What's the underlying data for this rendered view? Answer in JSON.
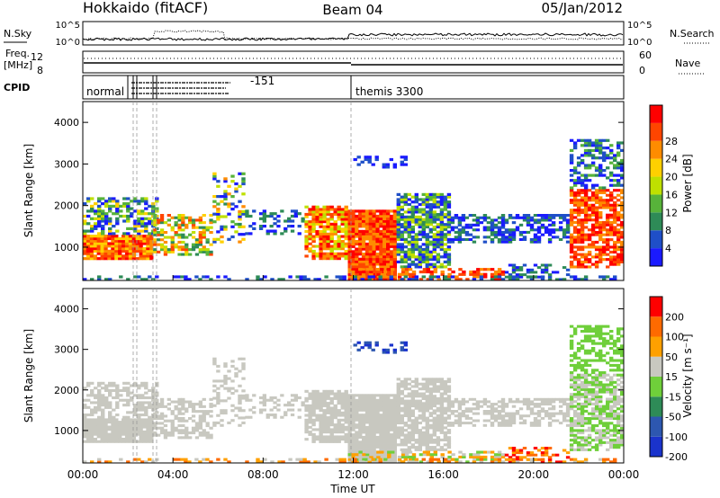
{
  "header": {
    "station": "Hokkaido (fitACF)",
    "beam": "Beam 04",
    "date": "05/Jan/2012"
  },
  "top_panels": {
    "nsky_label": "N.Sky",
    "nsky_ticks": [
      "10^5",
      "10^0"
    ],
    "nsearch_label": "N.Search",
    "nsearch_ticks": [
      "10^5",
      "10^0"
    ],
    "freq_label_line1": "Freq.",
    "freq_label_line2": "[MHz]",
    "freq_ticks": [
      "12",
      "8"
    ],
    "nave_label": "Nave",
    "nave_ticks": [
      "60",
      "0"
    ],
    "cpid_label": "CPID"
  },
  "cpid_annotations": [
    "normal",
    "themis 3300",
    "-151"
  ],
  "colors": {
    "power": [
      "#1a1aff",
      "#1f4fc8",
      "#2e8b57",
      "#57b33a",
      "#bfe000",
      "#ffd000",
      "#ff8c00",
      "#ff4500",
      "#ff0000"
    ],
    "velocity": [
      "#1a33cc",
      "#2d57b0",
      "#2e8b57",
      "#6fcf3a",
      "#c8c8c0",
      "#ffa000",
      "#ff6a00",
      "#ff0000"
    ]
  },
  "chart_data": [
    {
      "type": "heatmap",
      "ylabel": "Slant Range [km]",
      "yticks": [
        "1000",
        "2000",
        "3000",
        "4000"
      ],
      "ylim": [
        200,
        4500
      ],
      "colorbar": {
        "label": "Power [dB]",
        "ticks": [
          "4",
          "8",
          "12",
          "16",
          "20",
          "24",
          "28"
        ],
        "range": [
          0,
          32
        ]
      }
    },
    {
      "type": "heatmap",
      "ylabel": "Slant Range [km]",
      "yticks": [
        "1000",
        "2000",
        "3000",
        "4000"
      ],
      "ylim": [
        200,
        4500
      ],
      "colorbar": {
        "label": "Velocity [m s⁻¹]",
        "ticks": [
          "200",
          "100",
          "50",
          "15",
          "-15",
          "-50",
          "-100",
          "-200"
        ]
      }
    }
  ],
  "x_axis": {
    "label": "Time UT",
    "ticks": [
      "00:00",
      "04:00",
      "08:00",
      "12:00",
      "16:00",
      "20:00",
      "00:00"
    ]
  }
}
